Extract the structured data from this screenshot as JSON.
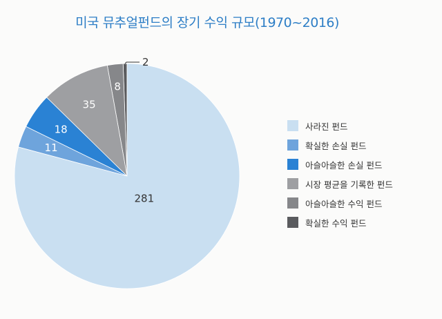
{
  "title": "미국 뮤추얼펀드의 장기 수익 규모(1970~2016)",
  "chart_data": {
    "type": "pie",
    "title": "미국 뮤추얼펀드의 장기 수익 규모(1970~2016)",
    "slices": [
      {
        "label": "사라진 펀드",
        "value": 281,
        "color": "#c9dff1"
      },
      {
        "label": "확실한 손실 펀드",
        "value": 11,
        "color": "#6ea4dc"
      },
      {
        "label": "아슬아슬한 손실 펀드",
        "value": 18,
        "color": "#2a82d4"
      },
      {
        "label": "시장 평균을 기록한 펀드",
        "value": 35,
        "color": "#9e9fa2"
      },
      {
        "label": "아슬아슬한 수익 펀드",
        "value": 8,
        "color": "#86878a"
      },
      {
        "label": "확실한 수익 펀드",
        "value": 2,
        "color": "#5a5b5e"
      }
    ],
    "legend_position": "right"
  }
}
